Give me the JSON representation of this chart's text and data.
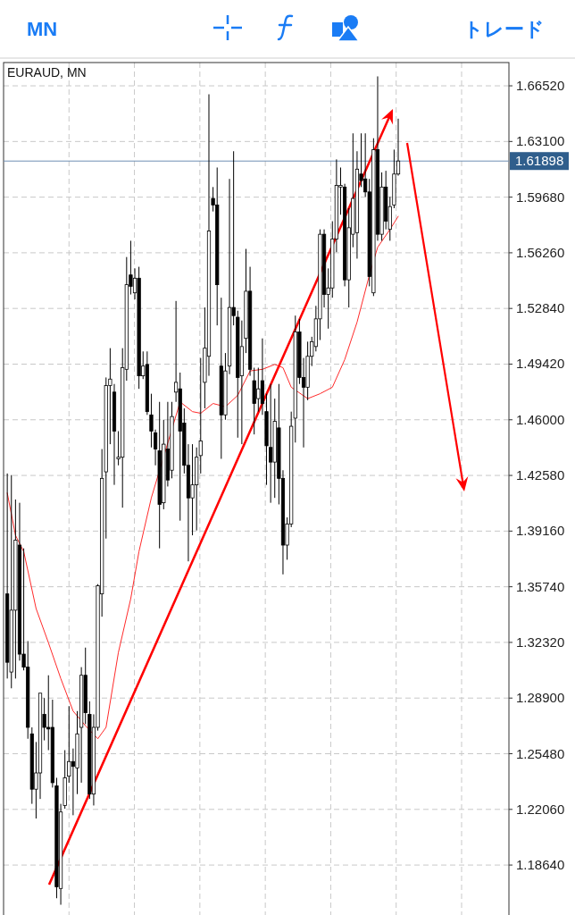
{
  "chart_data": {
    "type": "candlestick",
    "title": "EURAUD, MN",
    "annotations": [
      "MN",
      "トレード"
    ],
    "categories": [
      null,
      null,
      null,
      null,
      null,
      null,
      null,
      null,
      null,
      null,
      null,
      null,
      null,
      null,
      null,
      null,
      null,
      null,
      null,
      null,
      null,
      null,
      null,
      null,
      null,
      null,
      null,
      null,
      null,
      null,
      null,
      null,
      null,
      null,
      null,
      null,
      null,
      null,
      null,
      null,
      null,
      null,
      null,
      null,
      null,
      null,
      null,
      null,
      null,
      null,
      null,
      null,
      null,
      null,
      null,
      null,
      null,
      null,
      null,
      null,
      null,
      null,
      null,
      null,
      null,
      null,
      null,
      null,
      null,
      null,
      null,
      null,
      null,
      null,
      null,
      null,
      null,
      null,
      null,
      null,
      null,
      null,
      null,
      null,
      null,
      null,
      null,
      null,
      null,
      null,
      null,
      null,
      null,
      null,
      null,
      null,
      null,
      null,
      null,
      null,
      null,
      null,
      null,
      null,
      null,
      null,
      null,
      null,
      null,
      null,
      null,
      null,
      null,
      null,
      null,
      null,
      null,
      null,
      null,
      null,
      null,
      null
    ],
    "ohlc": [
      [
        1.353,
        1.427,
        1.301,
        1.311
      ],
      [
        1.305,
        1.426,
        1.295,
        1.343
      ],
      [
        1.343,
        1.411,
        1.301,
        1.386
      ],
      [
        1.383,
        1.409,
        1.312,
        1.316
      ],
      [
        1.316,
        1.381,
        1.306,
        1.308
      ],
      [
        1.308,
        1.324,
        1.264,
        1.271
      ],
      [
        1.267,
        1.271,
        1.224,
        1.233
      ],
      [
        1.233,
        1.262,
        1.215,
        1.243
      ],
      [
        1.243,
        1.292,
        1.227,
        1.292
      ],
      [
        1.279,
        1.289,
        1.263,
        1.271
      ],
      [
        1.271,
        1.303,
        1.257,
        1.27
      ],
      [
        1.271,
        1.288,
        1.234,
        1.237
      ],
      [
        1.235,
        1.24,
        1.166,
        1.173
      ],
      [
        1.172,
        1.224,
        1.162,
        1.219
      ],
      [
        1.223,
        1.257,
        1.221,
        1.24
      ],
      [
        1.241,
        1.284,
        1.237,
        1.25
      ],
      [
        1.25,
        1.258,
        1.217,
        1.247
      ],
      [
        1.246,
        1.281,
        1.23,
        1.267
      ],
      [
        1.271,
        1.308,
        1.237,
        1.303
      ],
      [
        1.303,
        1.32,
        1.273,
        1.28
      ],
      [
        1.279,
        1.287,
        1.227,
        1.23
      ],
      [
        1.23,
        1.279,
        1.223,
        1.271
      ],
      [
        1.271,
        1.359,
        1.269,
        1.358
      ],
      [
        1.353,
        1.442,
        1.339,
        1.424
      ],
      [
        1.428,
        1.486,
        1.387,
        1.481
      ],
      [
        1.481,
        1.504,
        1.445,
        1.485
      ],
      [
        1.477,
        1.482,
        1.42,
        1.453
      ],
      [
        1.436,
        1.453,
        1.432,
        1.437
      ],
      [
        1.437,
        1.504,
        1.406,
        1.492
      ],
      [
        1.491,
        1.56,
        1.484,
        1.543
      ],
      [
        1.549,
        1.57,
        1.537,
        1.542
      ],
      [
        1.538,
        1.553,
        1.534,
        1.547
      ],
      [
        1.547,
        1.554,
        1.479,
        1.487
      ],
      [
        1.487,
        1.502,
        1.485,
        1.493
      ],
      [
        1.494,
        1.502,
        1.463,
        1.465
      ],
      [
        1.463,
        1.476,
        1.443,
        1.453
      ],
      [
        1.452,
        1.454,
        1.432,
        1.442
      ],
      [
        1.441,
        1.471,
        1.381,
        1.408
      ],
      [
        1.409,
        1.46,
        1.405,
        1.445
      ],
      [
        1.442,
        1.471,
        1.419,
        1.423
      ],
      [
        1.429,
        1.471,
        1.424,
        1.462
      ],
      [
        1.477,
        1.533,
        1.471,
        1.483
      ],
      [
        1.479,
        1.489,
        1.398,
        1.453
      ],
      [
        1.458,
        1.467,
        1.427,
        1.432
      ],
      [
        1.432,
        1.445,
        1.373,
        1.412
      ],
      [
        1.412,
        1.445,
        1.389,
        1.42
      ],
      [
        1.42,
        1.443,
        1.392,
        1.437
      ],
      [
        1.438,
        1.498,
        1.427,
        1.447
      ],
      [
        1.483,
        1.529,
        1.467,
        1.504
      ],
      [
        1.499,
        1.66,
        1.487,
        1.576
      ],
      [
        1.596,
        1.603,
        1.588,
        1.592
      ],
      [
        1.592,
        1.615,
        1.518,
        1.543
      ],
      [
        1.493,
        1.535,
        1.436,
        1.463
      ],
      [
        1.463,
        1.501,
        1.46,
        1.49
      ],
      [
        1.493,
        1.608,
        1.488,
        1.529
      ],
      [
        1.529,
        1.625,
        1.518,
        1.524
      ],
      [
        1.523,
        1.527,
        1.449,
        1.486
      ],
      [
        1.487,
        1.521,
        1.445,
        1.505
      ],
      [
        1.51,
        1.565,
        1.501,
        1.539
      ],
      [
        1.539,
        1.554,
        1.487,
        1.491
      ],
      [
        1.484,
        1.492,
        1.451,
        1.47
      ],
      [
        1.473,
        1.492,
        1.465,
        1.479
      ],
      [
        1.484,
        1.51,
        1.463,
        1.47
      ],
      [
        1.465,
        1.476,
        1.42,
        1.444
      ],
      [
        1.443,
        1.482,
        1.409,
        1.434
      ],
      [
        1.434,
        1.473,
        1.412,
        1.459
      ],
      [
        1.455,
        1.482,
        1.408,
        1.424
      ],
      [
        1.424,
        1.429,
        1.365,
        1.383
      ],
      [
        1.383,
        1.4,
        1.374,
        1.396
      ],
      [
        1.396,
        1.465,
        1.394,
        1.456
      ],
      [
        1.461,
        1.524,
        1.446,
        1.514
      ],
      [
        1.514,
        1.522,
        1.482,
        1.486
      ],
      [
        1.486,
        1.498,
        1.443,
        1.48
      ],
      [
        1.48,
        1.508,
        1.472,
        1.499
      ],
      [
        1.499,
        1.511,
        1.493,
        1.508
      ],
      [
        1.505,
        1.53,
        1.502,
        1.522
      ],
      [
        1.522,
        1.577,
        1.509,
        1.574
      ],
      [
        1.574,
        1.577,
        1.529,
        1.537
      ],
      [
        1.537,
        1.553,
        1.516,
        1.541
      ],
      [
        1.541,
        1.582,
        1.535,
        1.571
      ],
      [
        1.571,
        1.62,
        1.563,
        1.604
      ],
      [
        1.603,
        1.615,
        1.586,
        1.604
      ],
      [
        1.603,
        1.605,
        1.542,
        1.546
      ],
      [
        1.546,
        1.59,
        1.529,
        1.578
      ],
      [
        1.574,
        1.636,
        1.566,
        1.596
      ],
      [
        1.575,
        1.625,
        1.559,
        1.614
      ],
      [
        1.611,
        1.636,
        1.603,
        1.607
      ],
      [
        1.608,
        1.636,
        1.597,
        1.6
      ],
      [
        1.6,
        1.608,
        1.542,
        1.548
      ],
      [
        1.538,
        1.633,
        1.536,
        1.626
      ],
      [
        1.626,
        1.671,
        1.57,
        1.574
      ],
      [
        1.574,
        1.612,
        1.57,
        1.603
      ],
      [
        1.603,
        1.613,
        1.577,
        1.582
      ],
      [
        1.577,
        1.597,
        1.57,
        1.591
      ],
      [
        1.592,
        1.626,
        1.59,
        1.611
      ],
      [
        1.611,
        1.645,
        1.61,
        1.619
      ],
      null,
      null,
      null,
      null,
      null,
      null,
      null,
      null,
      null,
      null,
      null,
      null,
      null,
      null,
      null,
      null,
      null,
      null,
      null,
      null,
      null,
      null,
      null,
      null,
      null,
      null
    ],
    "series": [
      {
        "type": "line",
        "color": "#ff2a2a",
        "marker": "none",
        "values": [
          1.415,
          null,
          1.389,
          null,
          1.379,
          null,
          null,
          1.344,
          null,
          null,
          1.323,
          null,
          null,
          1.301,
          null,
          null,
          1.281,
          null,
          null,
          1.272,
          null,
          null,
          1.264,
          null,
          1.271,
          null,
          null,
          1.317,
          null,
          null,
          1.35,
          null,
          1.379,
          null,
          null,
          1.412,
          null,
          null,
          null,
          null,
          null,
          null,
          1.471,
          null,
          null,
          1.465,
          null,
          1.464,
          null,
          null,
          1.47,
          null,
          null,
          1.468,
          null,
          null,
          1.475,
          null,
          null,
          1.49,
          null,
          null,
          1.491,
          null,
          null,
          1.494,
          null,
          1.492,
          null,
          1.48,
          null,
          null,
          null,
          1.473,
          null,
          null,
          1.476,
          null,
          null,
          1.48,
          null,
          null,
          1.497,
          null,
          null,
          1.52,
          null,
          null,
          1.549,
          null,
          1.566,
          null,
          null,
          1.577,
          null,
          1.585,
          null,
          null,
          null,
          null,
          null,
          null,
          null,
          null,
          null,
          null,
          null,
          null,
          null,
          null,
          null,
          null,
          null,
          null,
          null,
          null,
          null,
          null,
          null,
          null,
          null,
          null
        ]
      }
    ],
    "ylim": [
      1.1557,
      1.6795
    ],
    "yticks": [
      {
        "value": 1.1864,
        "label": "1.18640"
      },
      {
        "value": 1.2206,
        "label": "1.22060"
      },
      {
        "value": 1.2548,
        "label": "1.25480"
      },
      {
        "value": 1.289,
        "label": "1.28900"
      },
      {
        "value": 1.3232,
        "label": "1.32320"
      },
      {
        "value": 1.3574,
        "label": "1.35740"
      },
      {
        "value": 1.3916,
        "label": "1.39160"
      },
      {
        "value": 1.4258,
        "label": "1.42580"
      },
      {
        "value": 1.46,
        "label": "1.46000"
      },
      {
        "value": 1.4942,
        "label": "1.49420"
      },
      {
        "value": 1.5284,
        "label": "1.52840"
      },
      {
        "value": 1.5626,
        "label": "1.56260"
      },
      {
        "value": 1.5968,
        "label": "1.59680"
      },
      {
        "value": 1.631,
        "label": "1.63100"
      },
      {
        "value": 1.6652,
        "label": "1.66520"
      }
    ],
    "ref_lines": [
      {
        "axis": "y",
        "value": 1.61898,
        "label": "1.61898",
        "color": "#6f8fb3"
      }
    ],
    "grid": true
  }
}
